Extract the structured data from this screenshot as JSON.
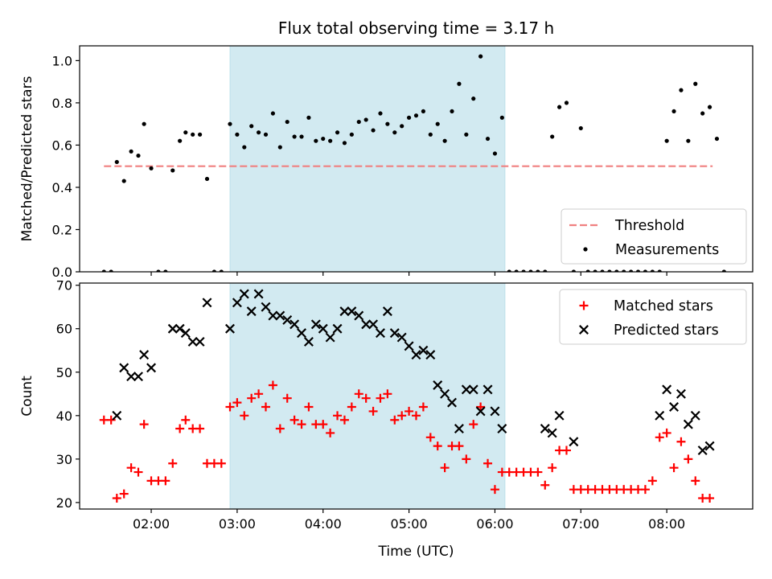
{
  "chart_data": [
    {
      "type": "scatter",
      "title": "Flux total observing time = 3.17 h",
      "xlabel": "",
      "ylabel": "Matched/Predicted stars",
      "xlim": [
        "01:10",
        "09:00"
      ],
      "ylim": [
        0,
        1.07
      ],
      "yticks": [
        0.0,
        0.2,
        0.4,
        0.6,
        0.8,
        1.0
      ],
      "ytick_labels": [
        "0.0",
        "0.2",
        "0.4",
        "0.6",
        "0.8",
        "1.0"
      ],
      "shaded_interval": {
        "start": "02:55",
        "end": "06:07",
        "color": "#add8e6"
      },
      "legend_position": "lower right",
      "series": [
        {
          "name": "Threshold",
          "kind": "dashed-line",
          "color": "#f08080",
          "x": [
            "01:27",
            "08:32"
          ],
          "y": [
            0.5,
            0.5
          ]
        },
        {
          "name": "Measurements",
          "kind": "dots",
          "color": "#000000",
          "points": [
            [
              "01:27",
              0.0
            ],
            [
              "01:32",
              0.0
            ],
            [
              "01:36",
              0.52
            ],
            [
              "01:41",
              0.43
            ],
            [
              "01:46",
              0.57
            ],
            [
              "01:51",
              0.55
            ],
            [
              "01:55",
              0.7
            ],
            [
              "02:00",
              0.49
            ],
            [
              "02:05",
              0.0
            ],
            [
              "02:10",
              0.0
            ],
            [
              "02:15",
              0.48
            ],
            [
              "02:20",
              0.62
            ],
            [
              "02:24",
              0.66
            ],
            [
              "02:29",
              0.65
            ],
            [
              "02:34",
              0.65
            ],
            [
              "02:39",
              0.44
            ],
            [
              "02:44",
              0.0
            ],
            [
              "02:49",
              0.0
            ],
            [
              "02:55",
              0.7
            ],
            [
              "03:00",
              0.65
            ],
            [
              "03:05",
              0.59
            ],
            [
              "03:10",
              0.69
            ],
            [
              "03:15",
              0.66
            ],
            [
              "03:20",
              0.65
            ],
            [
              "03:25",
              0.75
            ],
            [
              "03:30",
              0.59
            ],
            [
              "03:35",
              0.71
            ],
            [
              "03:40",
              0.64
            ],
            [
              "03:45",
              0.64
            ],
            [
              "03:50",
              0.73
            ],
            [
              "03:55",
              0.62
            ],
            [
              "04:00",
              0.63
            ],
            [
              "04:05",
              0.62
            ],
            [
              "04:10",
              0.66
            ],
            [
              "04:15",
              0.61
            ],
            [
              "04:20",
              0.65
            ],
            [
              "04:25",
              0.71
            ],
            [
              "04:30",
              0.72
            ],
            [
              "04:35",
              0.67
            ],
            [
              "04:40",
              0.75
            ],
            [
              "04:45",
              0.7
            ],
            [
              "04:50",
              0.66
            ],
            [
              "04:55",
              0.69
            ],
            [
              "05:00",
              0.73
            ],
            [
              "05:05",
              0.74
            ],
            [
              "05:10",
              0.76
            ],
            [
              "05:15",
              0.65
            ],
            [
              "05:20",
              0.7
            ],
            [
              "05:25",
              0.62
            ],
            [
              "05:30",
              0.76
            ],
            [
              "05:35",
              0.89
            ],
            [
              "05:40",
              0.65
            ],
            [
              "05:45",
              0.82
            ],
            [
              "05:50",
              1.02
            ],
            [
              "05:55",
              0.63
            ],
            [
              "06:00",
              0.56
            ],
            [
              "06:05",
              0.73
            ],
            [
              "06:10",
              0.0
            ],
            [
              "06:15",
              0.0
            ],
            [
              "06:20",
              0.0
            ],
            [
              "06:25",
              0.0
            ],
            [
              "06:30",
              0.0
            ],
            [
              "06:35",
              0.0
            ],
            [
              "06:40",
              0.64
            ],
            [
              "06:45",
              0.78
            ],
            [
              "06:50",
              0.8
            ],
            [
              "06:55",
              0.0
            ],
            [
              "07:00",
              0.68
            ],
            [
              "07:05",
              0.0
            ],
            [
              "07:10",
              0.0
            ],
            [
              "07:15",
              0.0
            ],
            [
              "07:20",
              0.0
            ],
            [
              "07:25",
              0.0
            ],
            [
              "07:30",
              0.0
            ],
            [
              "07:35",
              0.0
            ],
            [
              "07:40",
              0.0
            ],
            [
              "07:45",
              0.0
            ],
            [
              "07:50",
              0.0
            ],
            [
              "07:55",
              0.0
            ],
            [
              "08:00",
              0.62
            ],
            [
              "08:05",
              0.76
            ],
            [
              "08:10",
              0.86
            ],
            [
              "08:15",
              0.62
            ],
            [
              "08:20",
              0.89
            ],
            [
              "08:25",
              0.75
            ],
            [
              "08:30",
              0.78
            ],
            [
              "08:35",
              0.63
            ],
            [
              "08:40",
              0.0
            ]
          ]
        }
      ]
    },
    {
      "type": "scatter",
      "title": "",
      "xlabel": "Time (UTC)",
      "ylabel": "Count",
      "xlim": [
        "01:10",
        "09:00"
      ],
      "ylim": [
        18.5,
        70.5
      ],
      "xticks": [
        "02:00",
        "03:00",
        "04:00",
        "05:00",
        "06:00",
        "07:00",
        "08:00"
      ],
      "yticks": [
        20,
        30,
        40,
        50,
        60,
        70
      ],
      "ytick_labels": [
        "20",
        "30",
        "40",
        "50",
        "60",
        "70"
      ],
      "shaded_interval": {
        "start": "02:55",
        "end": "06:07",
        "color": "#add8e6"
      },
      "legend_position": "upper right",
      "series": [
        {
          "name": "Matched stars",
          "kind": "plus",
          "color": "#ff0000",
          "points": [
            [
              "01:27",
              39
            ],
            [
              "01:32",
              39
            ],
            [
              "01:36",
              21
            ],
            [
              "01:41",
              22
            ],
            [
              "01:46",
              28
            ],
            [
              "01:51",
              27
            ],
            [
              "01:55",
              38
            ],
            [
              "02:00",
              25
            ],
            [
              "02:05",
              25
            ],
            [
              "02:10",
              25
            ],
            [
              "02:15",
              29
            ],
            [
              "02:20",
              37
            ],
            [
              "02:24",
              39
            ],
            [
              "02:29",
              37
            ],
            [
              "02:34",
              37
            ],
            [
              "02:39",
              29
            ],
            [
              "02:44",
              29
            ],
            [
              "02:49",
              29
            ],
            [
              "02:55",
              42
            ],
            [
              "03:00",
              43
            ],
            [
              "03:05",
              40
            ],
            [
              "03:10",
              44
            ],
            [
              "03:15",
              45
            ],
            [
              "03:20",
              42
            ],
            [
              "03:25",
              47
            ],
            [
              "03:30",
              37
            ],
            [
              "03:35",
              44
            ],
            [
              "03:40",
              39
            ],
            [
              "03:45",
              38
            ],
            [
              "03:50",
              42
            ],
            [
              "03:55",
              38
            ],
            [
              "04:00",
              38
            ],
            [
              "04:05",
              36
            ],
            [
              "04:10",
              40
            ],
            [
              "04:15",
              39
            ],
            [
              "04:20",
              42
            ],
            [
              "04:25",
              45
            ],
            [
              "04:30",
              44
            ],
            [
              "04:35",
              41
            ],
            [
              "04:40",
              44
            ],
            [
              "04:45",
              45
            ],
            [
              "04:50",
              39
            ],
            [
              "04:55",
              40
            ],
            [
              "05:00",
              41
            ],
            [
              "05:05",
              40
            ],
            [
              "05:10",
              42
            ],
            [
              "05:15",
              35
            ],
            [
              "05:20",
              33
            ],
            [
              "05:25",
              28
            ],
            [
              "05:30",
              33
            ],
            [
              "05:35",
              33
            ],
            [
              "05:40",
              30
            ],
            [
              "05:45",
              38
            ],
            [
              "05:50",
              42
            ],
            [
              "05:55",
              29
            ],
            [
              "06:00",
              23
            ],
            [
              "06:05",
              27
            ],
            [
              "06:10",
              27
            ],
            [
              "06:15",
              27
            ],
            [
              "06:20",
              27
            ],
            [
              "06:25",
              27
            ],
            [
              "06:30",
              27
            ],
            [
              "06:35",
              24
            ],
            [
              "06:40",
              28
            ],
            [
              "06:45",
              32
            ],
            [
              "06:50",
              32
            ],
            [
              "06:55",
              23
            ],
            [
              "07:00",
              23
            ],
            [
              "07:05",
              23
            ],
            [
              "07:10",
              23
            ],
            [
              "07:15",
              23
            ],
            [
              "07:20",
              23
            ],
            [
              "07:25",
              23
            ],
            [
              "07:30",
              23
            ],
            [
              "07:35",
              23
            ],
            [
              "07:40",
              23
            ],
            [
              "07:45",
              23
            ],
            [
              "07:50",
              25
            ],
            [
              "07:55",
              35
            ],
            [
              "08:00",
              36
            ],
            [
              "08:05",
              28
            ],
            [
              "08:10",
              34
            ],
            [
              "08:15",
              30
            ],
            [
              "08:20",
              25
            ],
            [
              "08:25",
              21
            ],
            [
              "08:30",
              21
            ]
          ]
        },
        {
          "name": "Predicted stars",
          "kind": "cross",
          "color": "#000000",
          "points": [
            [
              "01:36",
              40
            ],
            [
              "01:41",
              51
            ],
            [
              "01:46",
              49
            ],
            [
              "01:51",
              49
            ],
            [
              "01:55",
              54
            ],
            [
              "02:00",
              51
            ],
            [
              "02:15",
              60
            ],
            [
              "02:20",
              60
            ],
            [
              "02:24",
              59
            ],
            [
              "02:29",
              57
            ],
            [
              "02:34",
              57
            ],
            [
              "02:39",
              66
            ],
            [
              "02:55",
              60
            ],
            [
              "03:00",
              66
            ],
            [
              "03:05",
              68
            ],
            [
              "03:10",
              64
            ],
            [
              "03:15",
              68
            ],
            [
              "03:20",
              65
            ],
            [
              "03:25",
              63
            ],
            [
              "03:30",
              63
            ],
            [
              "03:35",
              62
            ],
            [
              "03:40",
              61
            ],
            [
              "03:45",
              59
            ],
            [
              "03:50",
              57
            ],
            [
              "03:55",
              61
            ],
            [
              "04:00",
              60
            ],
            [
              "04:05",
              58
            ],
            [
              "04:10",
              60
            ],
            [
              "04:15",
              64
            ],
            [
              "04:20",
              64
            ],
            [
              "04:25",
              63
            ],
            [
              "04:30",
              61
            ],
            [
              "04:35",
              61
            ],
            [
              "04:40",
              59
            ],
            [
              "04:45",
              64
            ],
            [
              "04:50",
              59
            ],
            [
              "04:55",
              58
            ],
            [
              "05:00",
              56
            ],
            [
              "05:05",
              54
            ],
            [
              "05:10",
              55
            ],
            [
              "05:15",
              54
            ],
            [
              "05:20",
              47
            ],
            [
              "05:25",
              45
            ],
            [
              "05:30",
              43
            ],
            [
              "05:35",
              37
            ],
            [
              "05:40",
              46
            ],
            [
              "05:45",
              46
            ],
            [
              "05:50",
              41
            ],
            [
              "05:55",
              46
            ],
            [
              "06:00",
              41
            ],
            [
              "06:05",
              37
            ],
            [
              "06:35",
              37
            ],
            [
              "06:40",
              36
            ],
            [
              "06:45",
              40
            ],
            [
              "06:55",
              34
            ],
            [
              "07:55",
              40
            ],
            [
              "08:00",
              46
            ],
            [
              "08:05",
              42
            ],
            [
              "08:10",
              45
            ],
            [
              "08:15",
              38
            ],
            [
              "08:20",
              40
            ],
            [
              "08:25",
              32
            ],
            [
              "08:30",
              33
            ]
          ]
        }
      ]
    }
  ]
}
